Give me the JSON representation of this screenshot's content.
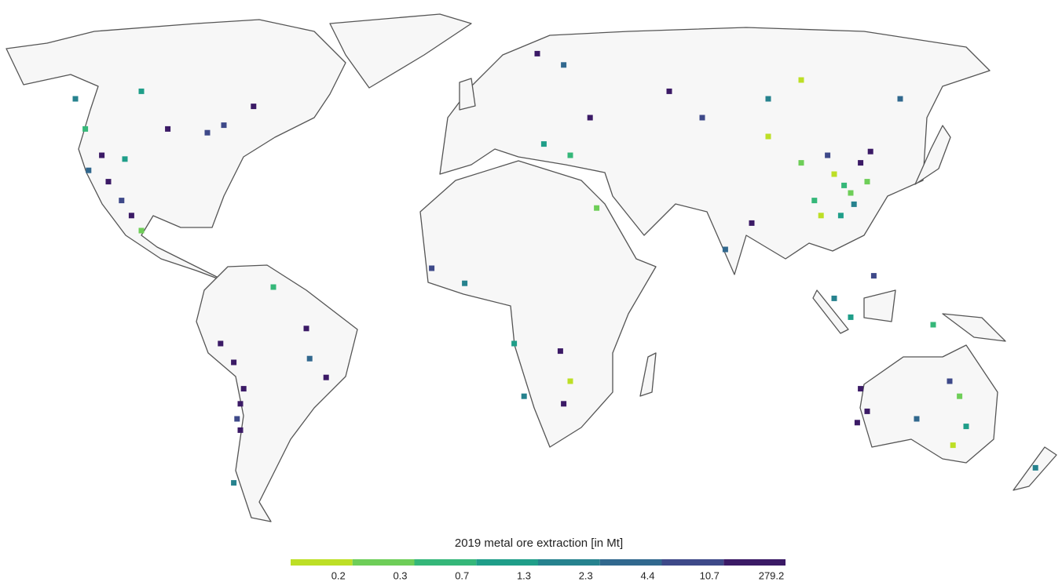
{
  "chart_data": {
    "type": "grid-map",
    "legend": {
      "title": "2019 metal ore extraction [in Mt]",
      "breaks": [
        0.2,
        0.3,
        0.7,
        1.3,
        2.3,
        4.4,
        10.7,
        279.2
      ],
      "colors": [
        "#bddf26",
        "#6ece58",
        "#35b779",
        "#1f9e89",
        "#26828e",
        "#31688e",
        "#3e4989",
        "#3b1a66"
      ]
    },
    "cells": {
      "lon": [
        -112,
        -110,
        -116,
        -105,
        -117,
        -92,
        -80,
        -120,
        -75,
        -100,
        -66,
        -103,
        -106,
        -100,
        -76,
        -72,
        -69,
        -70,
        -71,
        -70,
        -72,
        -50,
        -44,
        -49,
        -60,
        -12,
        -2,
        27,
        28,
        30,
        16,
        13,
        38,
        20,
        28,
        60,
        36,
        22,
        30,
        90,
        100,
        130,
        70,
        90,
        110,
        115,
        112,
        118,
        104,
        120,
        108,
        100,
        116,
        106,
        113,
        121,
        85,
        77,
        110,
        115,
        122,
        140,
        118,
        120,
        117,
        135,
        145,
        148,
        150,
        146,
        171
      ],
      "lat": [
        40,
        33,
        36,
        39,
        47,
        47,
        46,
        55,
        48,
        57,
        53,
        24,
        28,
        20,
        -10,
        -15,
        -22,
        -26,
        -30,
        -33,
        -47,
        -6,
        -19,
        -14,
        5,
        10,
        6,
        -12,
        -26,
        -20,
        -24,
        -10,
        26,
        67,
        64,
        57,
        50,
        43,
        40,
        55,
        60,
        55,
        50,
        45,
        35,
        30,
        24,
        38,
        28,
        33,
        40,
        38,
        27,
        24,
        32,
        41,
        22,
        15,
        2,
        -3,
        8,
        -5,
        -22,
        -28,
        -31,
        -30,
        -20,
        -24,
        -32,
        -37,
        -43
      ],
      "values": [
        12,
        50,
        3,
        1.2,
        0.5,
        20,
        5,
        2,
        8,
        1,
        30,
        15,
        6,
        0.25,
        15,
        40,
        150,
        60,
        8,
        20,
        1.5,
        100,
        80,
        3,
        0.6,
        5,
        1.5,
        40,
        20,
        0.2,
        2,
        0.8,
        0.3,
        15,
        3,
        12,
        25,
        1,
        0.4,
        2,
        0.2,
        3,
        10,
        0.2,
        0.2,
        0.3,
        1.2,
        20,
        0.7,
        0.25,
        5,
        0.3,
        2,
        0.2,
        0.7,
        50,
        30,
        4,
        2,
        1,
        5,
        0.4,
        200,
        30,
        12,
        3,
        6,
        0.3,
        1,
        0.2,
        2
      ]
    }
  }
}
